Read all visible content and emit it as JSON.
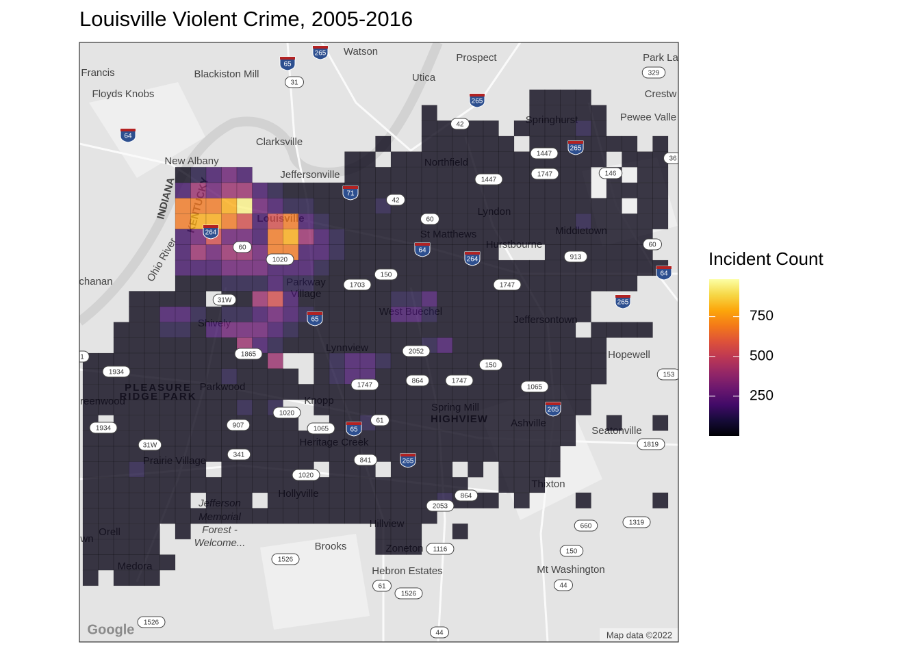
{
  "chart_data": {
    "type": "heatmap",
    "title": "Louisville Violent Crime, 2005-2016",
    "colormap": "inferno",
    "legend_title": "Incident Count",
    "clim": [
      0,
      985
    ],
    "cticks": [
      250,
      500,
      750
    ],
    "values": [
      [
        null,
        null,
        null,
        null,
        null,
        null,
        null,
        null,
        null,
        null,
        null,
        null,
        null,
        null,
        null,
        null,
        null,
        null,
        null,
        null,
        null,
        null,
        null,
        null,
        null,
        null,
        null,
        null,
        null,
        30,
        30,
        30,
        30,
        null,
        null,
        null,
        null,
        null
      ],
      [
        null,
        null,
        null,
        null,
        null,
        null,
        null,
        null,
        null,
        null,
        null,
        null,
        null,
        null,
        null,
        null,
        null,
        null,
        null,
        null,
        null,
        null,
        30,
        null,
        null,
        null,
        null,
        null,
        null,
        30,
        30,
        30,
        30,
        30,
        null,
        null,
        null,
        null
      ],
      [
        null,
        null,
        null,
        null,
        null,
        null,
        null,
        null,
        null,
        null,
        null,
        null,
        null,
        null,
        null,
        null,
        null,
        null,
        null,
        null,
        null,
        null,
        30,
        30,
        30,
        30,
        30,
        null,
        30,
        30,
        30,
        30,
        100,
        30,
        null,
        null,
        null,
        null
      ],
      [
        null,
        null,
        null,
        null,
        null,
        null,
        null,
        null,
        null,
        null,
        null,
        null,
        null,
        null,
        null,
        null,
        null,
        null,
        null,
        30,
        null,
        null,
        30,
        30,
        30,
        30,
        30,
        30,
        null,
        30,
        30,
        30,
        30,
        30,
        30,
        30,
        null,
        30
      ],
      [
        null,
        null,
        null,
        null,
        null,
        null,
        null,
        null,
        null,
        null,
        null,
        null,
        null,
        null,
        null,
        null,
        null,
        30,
        30,
        null,
        30,
        30,
        30,
        30,
        30,
        30,
        30,
        30,
        30,
        30,
        30,
        30,
        30,
        30,
        null,
        30,
        30,
        30
      ],
      [
        null,
        null,
        null,
        null,
        null,
        null,
        30,
        100,
        180,
        280,
        180,
        null,
        null,
        null,
        null,
        null,
        null,
        30,
        30,
        30,
        30,
        30,
        30,
        30,
        30,
        30,
        30,
        30,
        30,
        30,
        30,
        30,
        30,
        null,
        30,
        null,
        30,
        30
      ],
      [
        null,
        null,
        null,
        null,
        null,
        null,
        180,
        400,
        280,
        400,
        400,
        180,
        100,
        30,
        30,
        30,
        30,
        30,
        30,
        30,
        30,
        30,
        30,
        30,
        30,
        30,
        30,
        30,
        30,
        30,
        30,
        30,
        30,
        null,
        30,
        30,
        30,
        30
      ],
      [
        null,
        null,
        null,
        null,
        null,
        null,
        680,
        680,
        680,
        800,
        950,
        280,
        180,
        100,
        100,
        30,
        30,
        30,
        30,
        100,
        30,
        30,
        30,
        30,
        30,
        30,
        30,
        30,
        30,
        30,
        30,
        30,
        30,
        30,
        30,
        null,
        30,
        30
      ],
      [
        null,
        null,
        null,
        null,
        null,
        null,
        680,
        800,
        800,
        680,
        550,
        180,
        550,
        680,
        180,
        100,
        30,
        30,
        30,
        30,
        30,
        30,
        30,
        30,
        30,
        30,
        30,
        30,
        30,
        30,
        30,
        30,
        100,
        30,
        30,
        30,
        30,
        30
      ],
      [
        null,
        null,
        null,
        null,
        null,
        null,
        180,
        280,
        550,
        280,
        280,
        180,
        680,
        800,
        400,
        180,
        100,
        30,
        30,
        30,
        30,
        30,
        30,
        30,
        30,
        30,
        30,
        30,
        30,
        30,
        30,
        30,
        30,
        30,
        30,
        30,
        30,
        null
      ],
      [
        null,
        null,
        null,
        null,
        null,
        null,
        180,
        400,
        280,
        400,
        400,
        280,
        680,
        680,
        180,
        180,
        100,
        30,
        30,
        30,
        30,
        30,
        30,
        30,
        30,
        30,
        30,
        null,
        null,
        null,
        30,
        30,
        30,
        30,
        30,
        30,
        30,
        null
      ],
      [
        null,
        null,
        null,
        null,
        null,
        null,
        180,
        180,
        180,
        280,
        280,
        280,
        180,
        180,
        180,
        100,
        30,
        30,
        30,
        30,
        30,
        30,
        30,
        30,
        30,
        30,
        30,
        30,
        30,
        30,
        30,
        30,
        30,
        30,
        30,
        30,
        30,
        30
      ],
      [
        null,
        null,
        null,
        null,
        null,
        null,
        30,
        30,
        30,
        100,
        100,
        100,
        180,
        100,
        100,
        30,
        30,
        30,
        30,
        30,
        30,
        30,
        30,
        30,
        30,
        30,
        30,
        30,
        30,
        30,
        30,
        30,
        30,
        30,
        30,
        30,
        null,
        null
      ],
      [
        null,
        null,
        null,
        30,
        30,
        30,
        30,
        30,
        null,
        30,
        30,
        400,
        550,
        180,
        30,
        30,
        30,
        30,
        30,
        30,
        100,
        100,
        180,
        30,
        30,
        30,
        30,
        30,
        30,
        30,
        30,
        30,
        30,
        null,
        null,
        null,
        null,
        null
      ],
      [
        null,
        null,
        null,
        30,
        30,
        180,
        180,
        100,
        30,
        100,
        100,
        180,
        280,
        180,
        100,
        30,
        30,
        30,
        30,
        30,
        180,
        180,
        100,
        30,
        30,
        30,
        30,
        30,
        30,
        30,
        30,
        30,
        30,
        null,
        null,
        null,
        null,
        null
      ],
      [
        null,
        null,
        30,
        30,
        30,
        100,
        100,
        30,
        180,
        280,
        280,
        280,
        180,
        100,
        30,
        30,
        30,
        30,
        30,
        30,
        30,
        30,
        30,
        30,
        30,
        30,
        30,
        30,
        30,
        30,
        30,
        30,
        null,
        30,
        30,
        30,
        30,
        null
      ],
      [
        null,
        null,
        30,
        30,
        30,
        30,
        30,
        30,
        30,
        30,
        400,
        180,
        100,
        30,
        30,
        30,
        30,
        30,
        30,
        30,
        30,
        30,
        100,
        180,
        30,
        30,
        30,
        30,
        30,
        30,
        30,
        30,
        30,
        30,
        null,
        null,
        null,
        null
      ],
      [
        30,
        30,
        30,
        30,
        30,
        30,
        30,
        30,
        30,
        30,
        30,
        30,
        400,
        null,
        null,
        30,
        100,
        180,
        180,
        100,
        30,
        30,
        30,
        30,
        30,
        30,
        30,
        30,
        30,
        30,
        30,
        30,
        30,
        30,
        null,
        null,
        null,
        null
      ],
      [
        30,
        30,
        30,
        30,
        30,
        30,
        30,
        30,
        30,
        100,
        30,
        30,
        30,
        30,
        null,
        30,
        100,
        180,
        180,
        30,
        30,
        30,
        30,
        30,
        30,
        30,
        30,
        30,
        30,
        30,
        30,
        30,
        30,
        30,
        null,
        null,
        null,
        null
      ],
      [
        30,
        30,
        30,
        30,
        30,
        30,
        30,
        30,
        30,
        30,
        30,
        30,
        30,
        30,
        30,
        30,
        30,
        30,
        30,
        30,
        30,
        30,
        30,
        30,
        30,
        30,
        30,
        30,
        30,
        30,
        30,
        30,
        30,
        null,
        null,
        null,
        null,
        null
      ],
      [
        30,
        30,
        30,
        30,
        30,
        30,
        30,
        30,
        30,
        30,
        100,
        30,
        100,
        null,
        null,
        30,
        30,
        30,
        30,
        30,
        30,
        30,
        30,
        30,
        30,
        30,
        30,
        30,
        30,
        30,
        30,
        30,
        30,
        null,
        null,
        null,
        null,
        null
      ],
      [
        30,
        null,
        30,
        30,
        30,
        30,
        30,
        30,
        30,
        30,
        30,
        30,
        30,
        30,
        null,
        null,
        30,
        30,
        100,
        30,
        30,
        30,
        30,
        30,
        30,
        30,
        30,
        30,
        30,
        30,
        30,
        30,
        null,
        null,
        30,
        null,
        null,
        30
      ],
      [
        30,
        30,
        30,
        30,
        30,
        30,
        30,
        30,
        30,
        30,
        30,
        30,
        30,
        30,
        30,
        30,
        30,
        30,
        30,
        30,
        30,
        30,
        30,
        30,
        30,
        30,
        30,
        30,
        30,
        30,
        30,
        30,
        null,
        null,
        null,
        null,
        null,
        null
      ],
      [
        30,
        30,
        30,
        30,
        30,
        30,
        30,
        30,
        30,
        30,
        30,
        30,
        30,
        30,
        30,
        30,
        30,
        30,
        30,
        30,
        30,
        30,
        30,
        30,
        30,
        30,
        30,
        30,
        30,
        30,
        30,
        null,
        null,
        null,
        null,
        null,
        null,
        null
      ],
      [
        30,
        30,
        30,
        100,
        30,
        30,
        30,
        30,
        null,
        30,
        30,
        30,
        30,
        30,
        30,
        null,
        30,
        30,
        30,
        null,
        30,
        30,
        30,
        30,
        null,
        30,
        null,
        30,
        30,
        30,
        30,
        null,
        null,
        null,
        null,
        null,
        null,
        null
      ],
      [
        30,
        30,
        30,
        30,
        30,
        30,
        30,
        30,
        30,
        30,
        30,
        30,
        30,
        30,
        30,
        30,
        30,
        30,
        30,
        30,
        30,
        30,
        30,
        30,
        30,
        null,
        null,
        30,
        30,
        30,
        null,
        null,
        null,
        null,
        null,
        null,
        null,
        null
      ],
      [
        30,
        30,
        30,
        30,
        30,
        30,
        30,
        null,
        30,
        30,
        30,
        null,
        30,
        30,
        30,
        30,
        30,
        30,
        30,
        30,
        30,
        30,
        30,
        100,
        30,
        30,
        30,
        null,
        30,
        null,
        null,
        null,
        30,
        null,
        null,
        null,
        null,
        30
      ],
      [
        30,
        30,
        30,
        30,
        30,
        30,
        30,
        30,
        30,
        30,
        30,
        30,
        30,
        30,
        30,
        30,
        30,
        30,
        30,
        30,
        30,
        30,
        30,
        null,
        null,
        null,
        null,
        null,
        null,
        null,
        null,
        null,
        null,
        null,
        null,
        null,
        null,
        null
      ],
      [
        30,
        30,
        30,
        30,
        30,
        null,
        30,
        null,
        null,
        null,
        null,
        null,
        null,
        null,
        null,
        null,
        null,
        null,
        null,
        30,
        30,
        30,
        null,
        null,
        30,
        null,
        null,
        null,
        null,
        null,
        null,
        null,
        null,
        null,
        null,
        null,
        null,
        null
      ],
      [
        30,
        30,
        30,
        30,
        30,
        null,
        null,
        null,
        null,
        null,
        null,
        null,
        null,
        null,
        null,
        null,
        null,
        null,
        null,
        30,
        30,
        30,
        null,
        null,
        null,
        null,
        null,
        null,
        null,
        null,
        null,
        null,
        null,
        null,
        null,
        null,
        null,
        null
      ],
      [
        30,
        30,
        30,
        30,
        30,
        30,
        null,
        null,
        null,
        null,
        null,
        null,
        null,
        null,
        null,
        null,
        null,
        null,
        null,
        null,
        null,
        null,
        null,
        null,
        null,
        null,
        null,
        null,
        null,
        null,
        null,
        null,
        null,
        null,
        null,
        null,
        null,
        null
      ],
      [
        30,
        null,
        30,
        30,
        30,
        null,
        null,
        null,
        null,
        null,
        null,
        null,
        null,
        null,
        null,
        null,
        null,
        null,
        null,
        null,
        null,
        null,
        null,
        null,
        null,
        null,
        null,
        null,
        null,
        null,
        null,
        null,
        null,
        null,
        null,
        null,
        null,
        null
      ]
    ]
  },
  "map": {
    "place_labels": [
      "Watson",
      "Prospect",
      "Park La",
      "Francis",
      "Blackiston Mill",
      "Utica",
      "Floyds Knobs",
      "Crestw",
      "Springhurst",
      "Pewee Valle",
      "Clarksville",
      "New Albany",
      "Jeffersonville",
      "Northfield",
      "Lyndon",
      "Louisville",
      "Middletown",
      "St Matthews",
      "Hurstbourne",
      "chanan",
      "Parkway",
      "Village",
      "West Buechel",
      "Shively",
      "Jeffersontown",
      "Lynnview",
      "Hopewell",
      "reenwood",
      "Parkwood",
      "Knopp",
      "Spring Mill",
      "Ashville",
      "Seatonville",
      "Heritage Creek",
      "Prairie Village",
      "Thixton",
      "Hollyville",
      "Jefferson",
      "Memorial",
      "Forest -",
      "Welcome...",
      "Hillview",
      "Orell",
      "wn",
      "Brooks",
      "Zoneton",
      "Medora",
      "Hebron Estates",
      "Mt Washington",
      "INDIANA",
      "KENTUCKY",
      "Ohio River",
      "PLEASURE",
      "RIDGE PARK",
      "HIGHVIEW"
    ],
    "road_shields": [
      "265",
      "65",
      "31",
      "329",
      "265",
      "42",
      "64",
      "265",
      "1447",
      "36",
      "1447",
      "1747",
      "146",
      "71",
      "42",
      "60",
      "264",
      "60",
      "64",
      "264",
      "913",
      "60",
      "1020",
      "150",
      "1703",
      "1747",
      "64",
      "31W",
      "265",
      "65",
      "1865",
      "2052",
      "150",
      "1",
      "153",
      "1934",
      "864",
      "1747",
      "1747",
      "1065",
      "265",
      "1020",
      "61",
      "907",
      "1065",
      "65",
      "1934",
      "1819",
      "31W",
      "341",
      "841",
      "265",
      "1020",
      "864",
      "2053",
      "660",
      "1319",
      "150",
      "1116",
      "1526",
      "61",
      "1526",
      "44",
      "1526",
      "44"
    ],
    "attribution": "Map data ©2022",
    "logo": "Google"
  }
}
